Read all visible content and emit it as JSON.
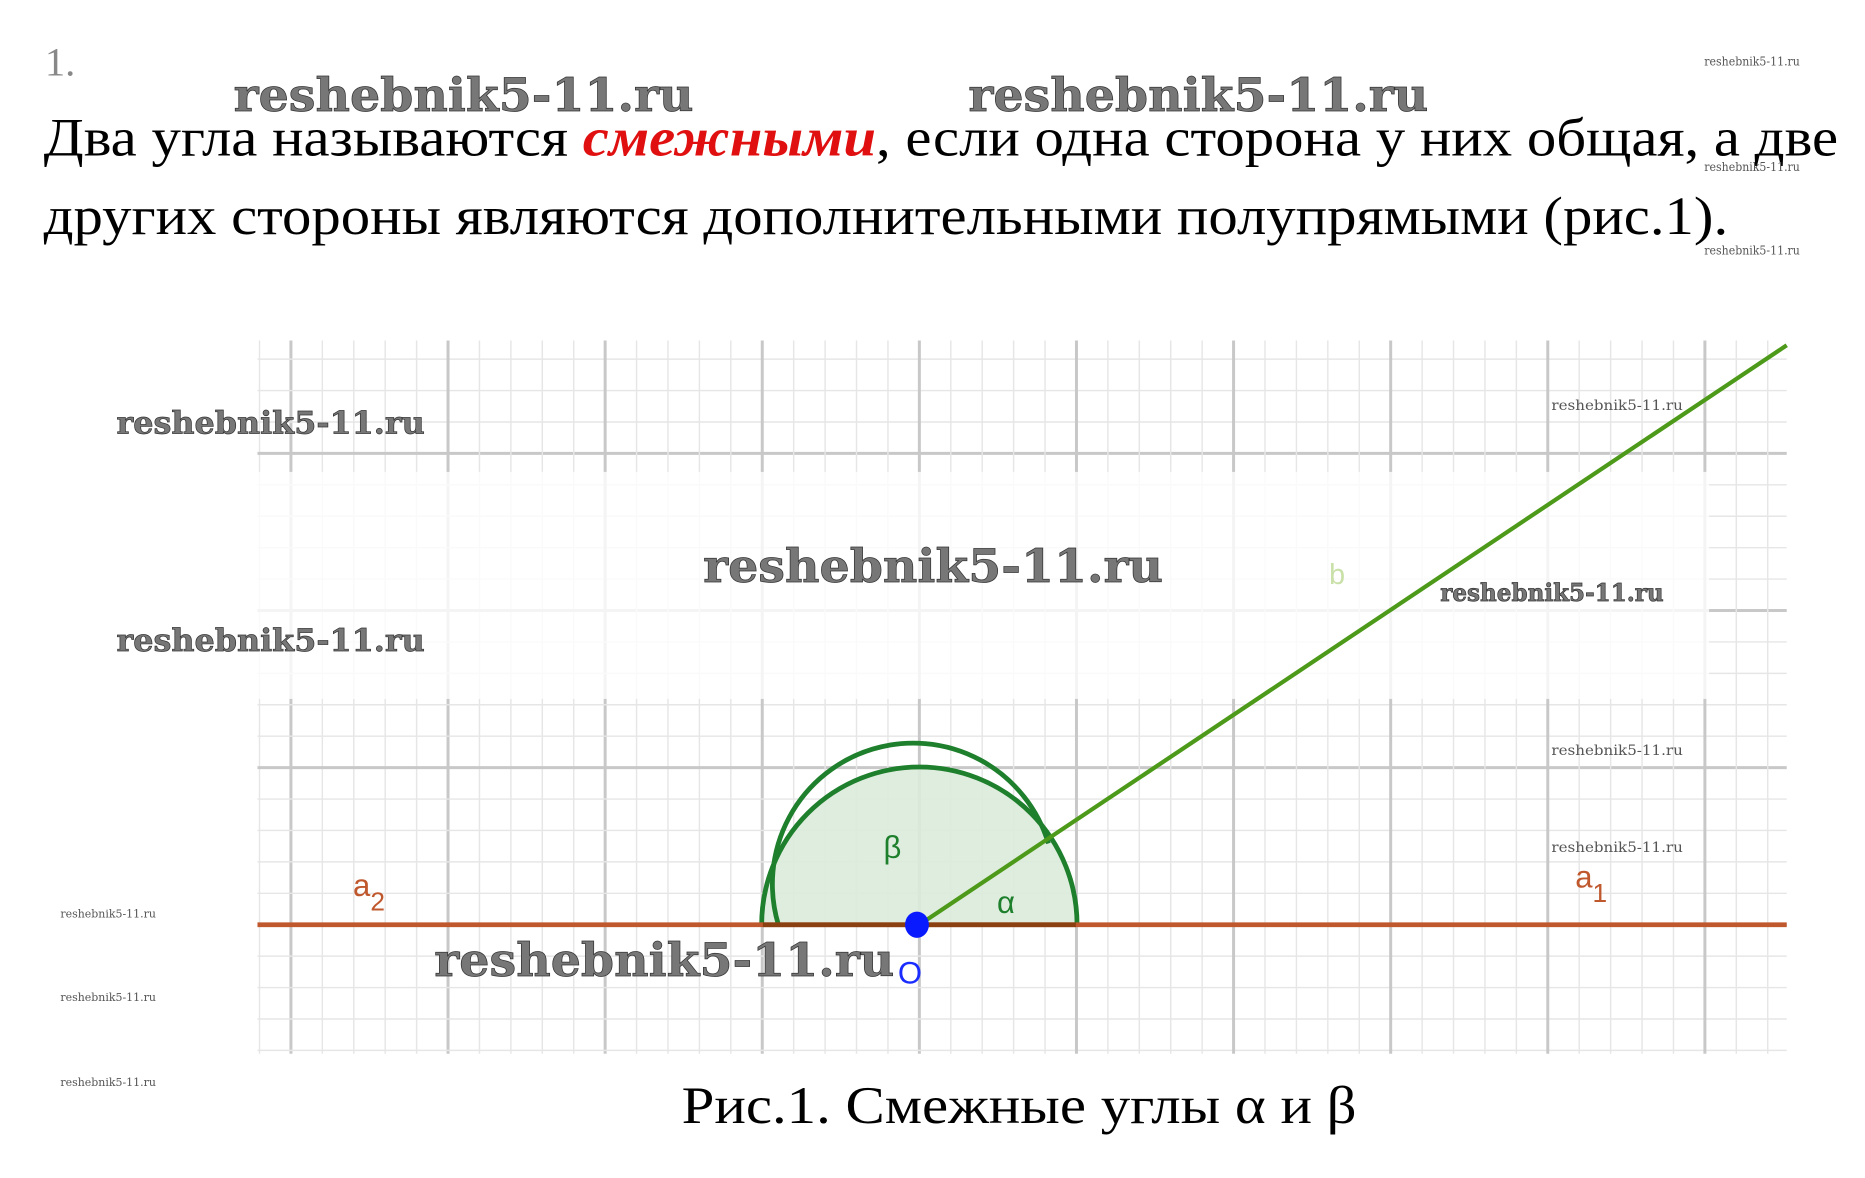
{
  "problem_number": "1.",
  "paragraph": {
    "line1_before": "Два угла называются ",
    "term": "смежными",
    "line1_after": ", если одна сторона у них общая, а две",
    "line2": "других стороны являются дополнительными полупрямыми (рис.1)."
  },
  "figure": {
    "labels": {
      "a2": "a",
      "a2_sub": "2",
      "a1": "a",
      "a1_sub": "1",
      "b": "b",
      "beta": "β",
      "alpha": "α",
      "origin": "O"
    },
    "caption": "Рис.1. Смежные углы α и β",
    "colors": {
      "line_a": "#c0582e",
      "ray_b": "#4d9a1a",
      "arc": "#1e7f2c",
      "sector_fill": "#dcebdc",
      "point": "#0a1aff",
      "grid_major": "#c8c8c8",
      "grid_minor": "#e6e6e6"
    }
  },
  "watermarks": [
    "reshebnik5-11.ru",
    "reshebnik5-11.ru",
    "reshebnik5-11.ru",
    "reshebnik5-11.ru",
    "reshebnik5-11.ru",
    "reshebnik5-11.ru",
    "reshebnik5-11.ru",
    "reshebnik5-11.ru",
    "reshebnik5-11.ru",
    "reshebnik5-11.ru",
    "reshebnik5-11.ru",
    "reshebnik5-11.ru",
    "reshebnik5-11.ru",
    "reshebnik5-11.ru",
    "reshebnik5-11.ru",
    "reshebnik5-11.ru"
  ]
}
